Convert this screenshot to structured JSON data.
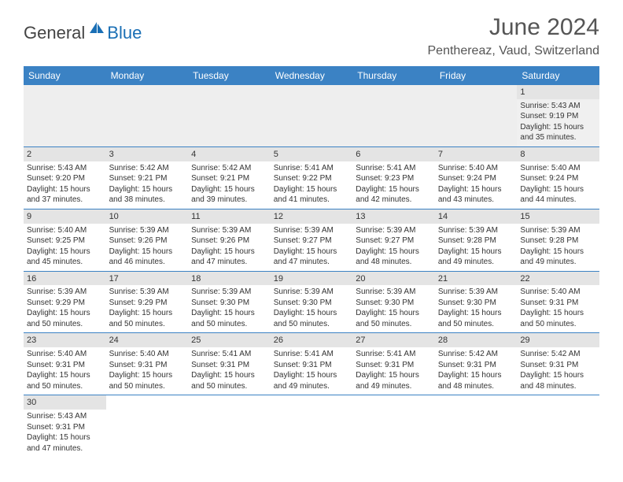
{
  "logo": {
    "general": "General",
    "blue": "Blue",
    "sail_color": "#1a6fb5"
  },
  "title": "June 2024",
  "location": "Penthereaz, Vaud, Switzerland",
  "header_bg": "#3b82c4",
  "header_text_color": "#ffffff",
  "divider_color": "#3b82c4",
  "shade_color": "#eeeeee",
  "daynum_bar_color": "#e4e4e4",
  "day_headers": [
    "Sunday",
    "Monday",
    "Tuesday",
    "Wednesday",
    "Thursday",
    "Friday",
    "Saturday"
  ],
  "weeks": [
    [
      null,
      null,
      null,
      null,
      null,
      null,
      {
        "day": "1",
        "sunrise": "Sunrise: 5:43 AM",
        "sunset": "Sunset: 9:19 PM",
        "daylight1": "Daylight: 15 hours",
        "daylight2": "and 35 minutes."
      }
    ],
    [
      {
        "day": "2",
        "sunrise": "Sunrise: 5:43 AM",
        "sunset": "Sunset: 9:20 PM",
        "daylight1": "Daylight: 15 hours",
        "daylight2": "and 37 minutes."
      },
      {
        "day": "3",
        "sunrise": "Sunrise: 5:42 AM",
        "sunset": "Sunset: 9:21 PM",
        "daylight1": "Daylight: 15 hours",
        "daylight2": "and 38 minutes."
      },
      {
        "day": "4",
        "sunrise": "Sunrise: 5:42 AM",
        "sunset": "Sunset: 9:21 PM",
        "daylight1": "Daylight: 15 hours",
        "daylight2": "and 39 minutes."
      },
      {
        "day": "5",
        "sunrise": "Sunrise: 5:41 AM",
        "sunset": "Sunset: 9:22 PM",
        "daylight1": "Daylight: 15 hours",
        "daylight2": "and 41 minutes."
      },
      {
        "day": "6",
        "sunrise": "Sunrise: 5:41 AM",
        "sunset": "Sunset: 9:23 PM",
        "daylight1": "Daylight: 15 hours",
        "daylight2": "and 42 minutes."
      },
      {
        "day": "7",
        "sunrise": "Sunrise: 5:40 AM",
        "sunset": "Sunset: 9:24 PM",
        "daylight1": "Daylight: 15 hours",
        "daylight2": "and 43 minutes."
      },
      {
        "day": "8",
        "sunrise": "Sunrise: 5:40 AM",
        "sunset": "Sunset: 9:24 PM",
        "daylight1": "Daylight: 15 hours",
        "daylight2": "and 44 minutes."
      }
    ],
    [
      {
        "day": "9",
        "sunrise": "Sunrise: 5:40 AM",
        "sunset": "Sunset: 9:25 PM",
        "daylight1": "Daylight: 15 hours",
        "daylight2": "and 45 minutes."
      },
      {
        "day": "10",
        "sunrise": "Sunrise: 5:39 AM",
        "sunset": "Sunset: 9:26 PM",
        "daylight1": "Daylight: 15 hours",
        "daylight2": "and 46 minutes."
      },
      {
        "day": "11",
        "sunrise": "Sunrise: 5:39 AM",
        "sunset": "Sunset: 9:26 PM",
        "daylight1": "Daylight: 15 hours",
        "daylight2": "and 47 minutes."
      },
      {
        "day": "12",
        "sunrise": "Sunrise: 5:39 AM",
        "sunset": "Sunset: 9:27 PM",
        "daylight1": "Daylight: 15 hours",
        "daylight2": "and 47 minutes."
      },
      {
        "day": "13",
        "sunrise": "Sunrise: 5:39 AM",
        "sunset": "Sunset: 9:27 PM",
        "daylight1": "Daylight: 15 hours",
        "daylight2": "and 48 minutes."
      },
      {
        "day": "14",
        "sunrise": "Sunrise: 5:39 AM",
        "sunset": "Sunset: 9:28 PM",
        "daylight1": "Daylight: 15 hours",
        "daylight2": "and 49 minutes."
      },
      {
        "day": "15",
        "sunrise": "Sunrise: 5:39 AM",
        "sunset": "Sunset: 9:28 PM",
        "daylight1": "Daylight: 15 hours",
        "daylight2": "and 49 minutes."
      }
    ],
    [
      {
        "day": "16",
        "sunrise": "Sunrise: 5:39 AM",
        "sunset": "Sunset: 9:29 PM",
        "daylight1": "Daylight: 15 hours",
        "daylight2": "and 50 minutes."
      },
      {
        "day": "17",
        "sunrise": "Sunrise: 5:39 AM",
        "sunset": "Sunset: 9:29 PM",
        "daylight1": "Daylight: 15 hours",
        "daylight2": "and 50 minutes."
      },
      {
        "day": "18",
        "sunrise": "Sunrise: 5:39 AM",
        "sunset": "Sunset: 9:30 PM",
        "daylight1": "Daylight: 15 hours",
        "daylight2": "and 50 minutes."
      },
      {
        "day": "19",
        "sunrise": "Sunrise: 5:39 AM",
        "sunset": "Sunset: 9:30 PM",
        "daylight1": "Daylight: 15 hours",
        "daylight2": "and 50 minutes."
      },
      {
        "day": "20",
        "sunrise": "Sunrise: 5:39 AM",
        "sunset": "Sunset: 9:30 PM",
        "daylight1": "Daylight: 15 hours",
        "daylight2": "and 50 minutes."
      },
      {
        "day": "21",
        "sunrise": "Sunrise: 5:39 AM",
        "sunset": "Sunset: 9:30 PM",
        "daylight1": "Daylight: 15 hours",
        "daylight2": "and 50 minutes."
      },
      {
        "day": "22",
        "sunrise": "Sunrise: 5:40 AM",
        "sunset": "Sunset: 9:31 PM",
        "daylight1": "Daylight: 15 hours",
        "daylight2": "and 50 minutes."
      }
    ],
    [
      {
        "day": "23",
        "sunrise": "Sunrise: 5:40 AM",
        "sunset": "Sunset: 9:31 PM",
        "daylight1": "Daylight: 15 hours",
        "daylight2": "and 50 minutes."
      },
      {
        "day": "24",
        "sunrise": "Sunrise: 5:40 AM",
        "sunset": "Sunset: 9:31 PM",
        "daylight1": "Daylight: 15 hours",
        "daylight2": "and 50 minutes."
      },
      {
        "day": "25",
        "sunrise": "Sunrise: 5:41 AM",
        "sunset": "Sunset: 9:31 PM",
        "daylight1": "Daylight: 15 hours",
        "daylight2": "and 50 minutes."
      },
      {
        "day": "26",
        "sunrise": "Sunrise: 5:41 AM",
        "sunset": "Sunset: 9:31 PM",
        "daylight1": "Daylight: 15 hours",
        "daylight2": "and 49 minutes."
      },
      {
        "day": "27",
        "sunrise": "Sunrise: 5:41 AM",
        "sunset": "Sunset: 9:31 PM",
        "daylight1": "Daylight: 15 hours",
        "daylight2": "and 49 minutes."
      },
      {
        "day": "28",
        "sunrise": "Sunrise: 5:42 AM",
        "sunset": "Sunset: 9:31 PM",
        "daylight1": "Daylight: 15 hours",
        "daylight2": "and 48 minutes."
      },
      {
        "day": "29",
        "sunrise": "Sunrise: 5:42 AM",
        "sunset": "Sunset: 9:31 PM",
        "daylight1": "Daylight: 15 hours",
        "daylight2": "and 48 minutes."
      }
    ],
    [
      {
        "day": "30",
        "sunrise": "Sunrise: 5:43 AM",
        "sunset": "Sunset: 9:31 PM",
        "daylight1": "Daylight: 15 hours",
        "daylight2": "and 47 minutes."
      },
      null,
      null,
      null,
      null,
      null,
      null
    ]
  ]
}
